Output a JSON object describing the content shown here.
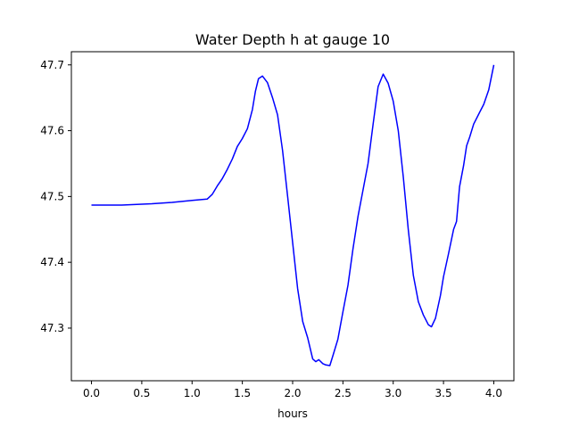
{
  "chart_data": {
    "type": "line",
    "title": "Water Depth h at gauge 10",
    "xlabel": "hours",
    "ylabel": "",
    "xlim": [
      -0.2,
      4.2
    ],
    "ylim": [
      47.22,
      47.72
    ],
    "xticks": [
      0.0,
      0.5,
      1.0,
      1.5,
      2.0,
      2.5,
      3.0,
      3.5,
      4.0
    ],
    "xtick_labels": [
      "0.0",
      "0.5",
      "1.0",
      "1.5",
      "2.0",
      "2.5",
      "3.0",
      "3.5",
      "4.0"
    ],
    "yticks": [
      47.3,
      47.4,
      47.5,
      47.6,
      47.7
    ],
    "ytick_labels": [
      "47.3",
      "47.4",
      "47.5",
      "47.6",
      "47.7"
    ],
    "grid": false,
    "series": [
      {
        "color": "#0000ff",
        "x": [
          0.0,
          0.3,
          0.6,
          0.8,
          1.0,
          1.15,
          1.2,
          1.25,
          1.3,
          1.35,
          1.4,
          1.45,
          1.5,
          1.55,
          1.6,
          1.63,
          1.66,
          1.7,
          1.75,
          1.8,
          1.85,
          1.9,
          1.95,
          2.0,
          2.05,
          2.1,
          2.15,
          2.2,
          2.23,
          2.26,
          2.3,
          2.33,
          2.37,
          2.4,
          2.45,
          2.5,
          2.55,
          2.6,
          2.65,
          2.7,
          2.75,
          2.8,
          2.85,
          2.9,
          2.95,
          3.0,
          3.05,
          3.1,
          3.15,
          3.2,
          3.25,
          3.3,
          3.35,
          3.38,
          3.42,
          3.47,
          3.5,
          3.55,
          3.6,
          3.63,
          3.66,
          3.7,
          3.73,
          3.76,
          3.8,
          3.85,
          3.9,
          3.95,
          4.0
        ],
        "y": [
          47.487,
          47.487,
          47.489,
          47.491,
          47.494,
          47.496,
          47.503,
          47.516,
          47.527,
          47.541,
          47.557,
          47.576,
          47.588,
          47.603,
          47.632,
          47.66,
          47.679,
          47.683,
          47.673,
          47.65,
          47.624,
          47.57,
          47.5,
          47.43,
          47.36,
          47.31,
          47.285,
          47.253,
          47.249,
          47.252,
          47.246,
          47.244,
          47.243,
          47.258,
          47.283,
          47.325,
          47.365,
          47.42,
          47.47,
          47.51,
          47.55,
          47.61,
          47.667,
          47.686,
          47.672,
          47.645,
          47.6,
          47.53,
          47.45,
          47.38,
          47.34,
          47.32,
          47.305,
          47.302,
          47.315,
          47.35,
          47.378,
          47.413,
          47.45,
          47.462,
          47.515,
          47.547,
          47.577,
          47.59,
          47.61,
          47.625,
          47.64,
          47.662,
          47.7
        ]
      }
    ]
  }
}
